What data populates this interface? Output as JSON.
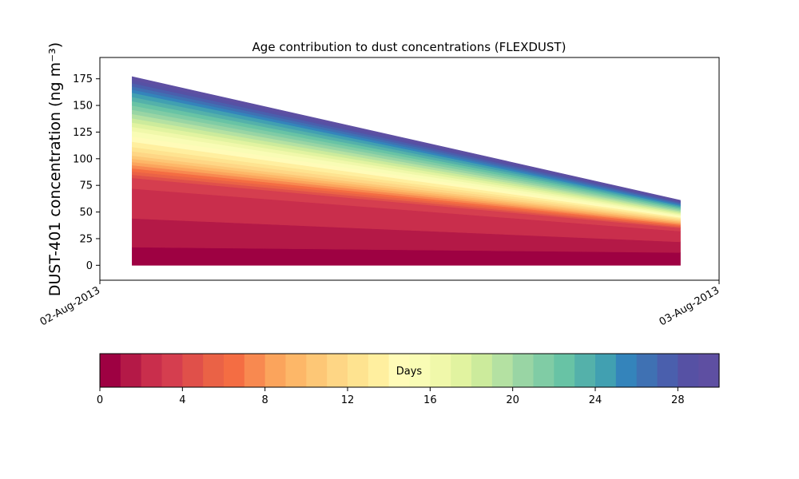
{
  "chart_data": {
    "type": "area",
    "title": "Age contribution to dust concentrations (FLEXDUST)",
    "ylabel": "DUST-401 concentration (ng m⁻³)",
    "xlabel": "",
    "x_ticks": [
      "02-Aug-2013",
      "03-Aug-2013"
    ],
    "x": [
      "02-Aug-2013 01:15",
      "02-Aug-2013 22:30"
    ],
    "ylim": [
      -14,
      195
    ],
    "y_ticks": [
      0,
      25,
      50,
      75,
      100,
      125,
      150,
      175
    ],
    "stacked": true,
    "series": [
      {
        "age_day": 0,
        "values": [
          17,
          12
        ]
      },
      {
        "age_day": 1,
        "values": [
          27,
          10
        ]
      },
      {
        "age_day": 2,
        "values": [
          28,
          10
        ]
      },
      {
        "age_day": 3,
        "values": [
          10,
          3
        ]
      },
      {
        "age_day": 4,
        "values": [
          3,
          1
        ]
      },
      {
        "age_day": 5,
        "values": [
          3,
          1
        ]
      },
      {
        "age_day": 6,
        "values": [
          3,
          1
        ]
      },
      {
        "age_day": 7,
        "values": [
          3,
          1
        ]
      },
      {
        "age_day": 8,
        "values": [
          3,
          1
        ]
      },
      {
        "age_day": 9,
        "values": [
          3,
          1
        ]
      },
      {
        "age_day": 10,
        "values": [
          3,
          1
        ]
      },
      {
        "age_day": 11,
        "values": [
          4,
          1
        ]
      },
      {
        "age_day": 12,
        "values": [
          4,
          1
        ]
      },
      {
        "age_day": 13,
        "values": [
          5,
          1
        ]
      },
      {
        "age_day": 14,
        "values": [
          5,
          1
        ]
      },
      {
        "age_day": 15,
        "values": [
          5,
          1
        ]
      },
      {
        "age_day": 16,
        "values": [
          4,
          1
        ]
      },
      {
        "age_day": 17,
        "values": [
          4,
          1
        ]
      },
      {
        "age_day": 18,
        "values": [
          4,
          1
        ]
      },
      {
        "age_day": 19,
        "values": [
          4,
          1
        ]
      },
      {
        "age_day": 20,
        "values": [
          4,
          1
        ]
      },
      {
        "age_day": 21,
        "values": [
          4,
          1
        ]
      },
      {
        "age_day": 22,
        "values": [
          4,
          1
        ]
      },
      {
        "age_day": 23,
        "values": [
          4,
          1
        ]
      },
      {
        "age_day": 24,
        "values": [
          4,
          1
        ]
      },
      {
        "age_day": 25,
        "values": [
          3,
          1
        ]
      },
      {
        "age_day": 26,
        "values": [
          3,
          1
        ]
      },
      {
        "age_day": 27,
        "values": [
          3,
          1
        ]
      },
      {
        "age_day": 28,
        "values": [
          3,
          1
        ]
      },
      {
        "age_day": 29,
        "values": [
          3,
          1
        ]
      }
    ],
    "colorbar": {
      "label": "Days",
      "range": [
        0,
        30
      ],
      "ticks": [
        0,
        4,
        8,
        12,
        16,
        20,
        24,
        28
      ],
      "colormap": "Spectral",
      "colors": [
        "#9e0142",
        "#b41947",
        "#c92e4c",
        "#d53e4f",
        "#e0504a",
        "#ea6246",
        "#f46d43",
        "#f88950",
        "#fba45c",
        "#fdb768",
        "#fdc776",
        "#fed685",
        "#fee390",
        "#ffef9f",
        "#fffbb8",
        "#f9fcb5",
        "#f0f8aa",
        "#e1f3a0",
        "#cceb9c",
        "#b4e1a2",
        "#99d5a4",
        "#80cca5",
        "#68c3a5",
        "#54b1aa",
        "#41a0b1",
        "#3484bb",
        "#3f71b3",
        "#4a5fad",
        "#5651a4",
        "#5e4fa2"
      ]
    }
  }
}
